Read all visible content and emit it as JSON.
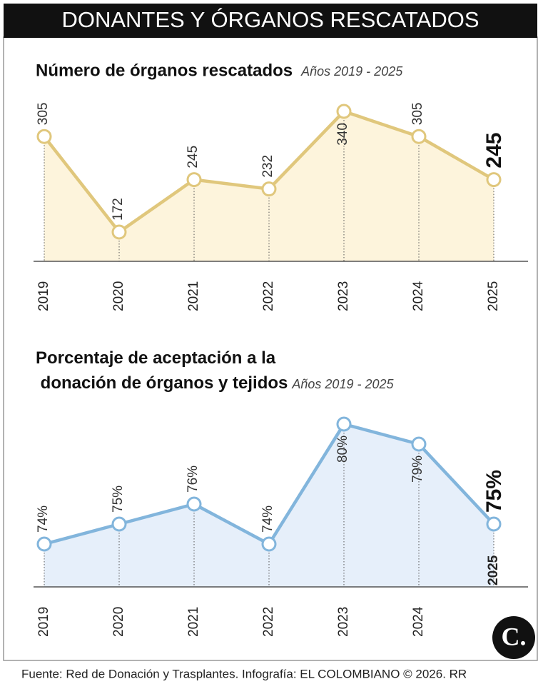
{
  "title": "DONANTES Y ÓRGANOS RESCATADOS",
  "chart_data": [
    {
      "type": "line",
      "title": "Número de órganos rescatados",
      "subtitle": "Años 2019 - 2025",
      "categories": [
        "2019",
        "2020",
        "2021",
        "2022",
        "2023",
        "2024",
        "2025"
      ],
      "values": [
        305,
        172,
        245,
        232,
        340,
        305,
        245
      ],
      "color": "#e0c77c",
      "fill": "#fdf4dc"
    },
    {
      "type": "line",
      "title": "Porcentaje de aceptación a la donación de órganos y tejidos",
      "subtitle": "Años 2019 - 2025",
      "categories": [
        "2019",
        "2020",
        "2021",
        "2022",
        "2023",
        "2024",
        "2025"
      ],
      "values": [
        74,
        75,
        76,
        74,
        80,
        79,
        75
      ],
      "value_labels": [
        "74%",
        "75%",
        "76%",
        "74%",
        "80%",
        "79%",
        "75%"
      ],
      "color": "#82b5dc",
      "fill": "#e6effa"
    }
  ],
  "source": "Fuente: Red de Donación y Trasplantes. Infografía: EL COLOMBIANO © 2026. RR",
  "logo": "C."
}
